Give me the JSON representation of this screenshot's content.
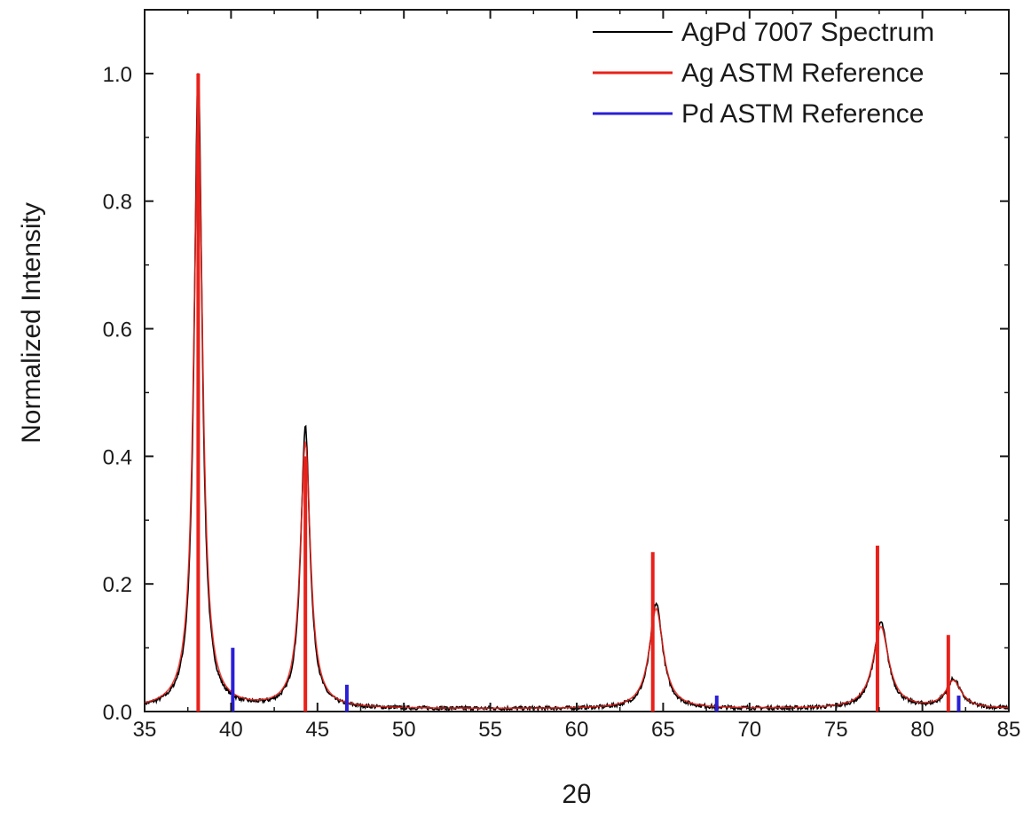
{
  "chart_data": {
    "type": "line",
    "title": "",
    "xlabel": "2θ",
    "ylabel": "Normalized Intensity",
    "xlim": [
      35,
      85
    ],
    "ylim": [
      0.0,
      1.1
    ],
    "x_ticks": [
      35,
      40,
      45,
      50,
      55,
      60,
      65,
      70,
      75,
      80,
      85
    ],
    "y_ticks": [
      0.0,
      0.2,
      0.4,
      0.6,
      0.8,
      1.0
    ],
    "x_tick_labels": [
      "35",
      "40",
      "45",
      "50",
      "55",
      "60",
      "65",
      "70",
      "75",
      "80",
      "85"
    ],
    "y_tick_labels": [
      "0.0",
      "0.2",
      "0.4",
      "0.6",
      "0.8",
      "1.0"
    ],
    "grid": false,
    "legend_position": "top-right",
    "series": [
      {
        "name": "AgPd 7007 Spectrum",
        "color": "#000000",
        "kind": "spectrum",
        "baseline": 0.004,
        "peaks": [
          {
            "center": 38.1,
            "height": 1.0,
            "width": 0.28
          },
          {
            "center": 44.3,
            "height": 0.44,
            "width": 0.32
          },
          {
            "center": 64.6,
            "height": 0.165,
            "width": 0.45
          },
          {
            "center": 77.6,
            "height": 0.135,
            "width": 0.5
          },
          {
            "center": 81.8,
            "height": 0.045,
            "width": 0.5
          }
        ]
      },
      {
        "name": "Ag ASTM Reference",
        "color": "#e8211a",
        "kind": "sticks",
        "x": [
          38.1,
          44.3,
          64.4,
          77.4,
          81.5
        ],
        "y": [
          1.0,
          0.4,
          0.25,
          0.26,
          0.12
        ]
      },
      {
        "name": "Pd ASTM Reference",
        "color": "#2a1fd6",
        "kind": "sticks",
        "x": [
          40.1,
          46.7,
          68.1,
          82.1
        ],
        "y": [
          0.1,
          0.042,
          0.025,
          0.025
        ]
      }
    ]
  }
}
